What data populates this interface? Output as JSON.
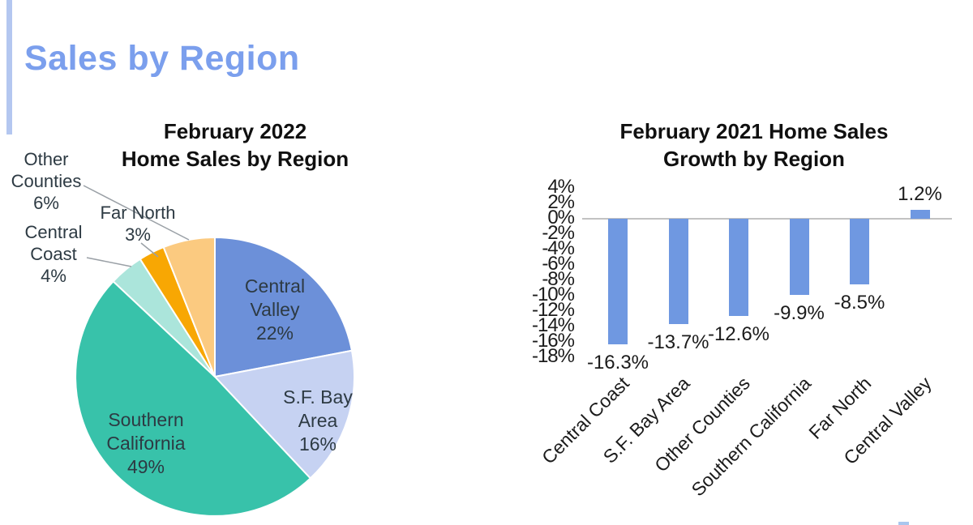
{
  "slide": {
    "title": "Sales by Region",
    "title_color": "#7B9FED",
    "accent_bar_color": "#B4C7F0",
    "background": "#FFFFFF",
    "deco_color": "#A9C6EE"
  },
  "chart_data": [
    {
      "type": "pie",
      "title": "February 2022 Home Sales by Region",
      "title_lines": [
        "February 2022",
        "Home Sales by Region"
      ],
      "start_angle_deg": 0,
      "direction": "clockwise",
      "slices": [
        {
          "label": "Central Valley",
          "value": 22,
          "percent_label": "22%",
          "color": "#6C90D9",
          "display_lines": [
            "Central",
            "Valley",
            "22%"
          ],
          "label_placement": "inside"
        },
        {
          "label": "S.F. Bay Area",
          "value": 16,
          "percent_label": "16%",
          "color": "#C6D2F2",
          "display_lines": [
            "S.F. Bay",
            "Area",
            "16%"
          ],
          "label_placement": "inside"
        },
        {
          "label": "Southern California",
          "value": 49,
          "percent_label": "49%",
          "color": "#38C2AA",
          "display_lines": [
            "Southern",
            "California",
            "49%"
          ],
          "label_placement": "inside"
        },
        {
          "label": "Central Coast",
          "value": 4,
          "percent_label": "4%",
          "color": "#ABE5DB",
          "display_lines": [
            "Central",
            "Coast",
            "4%"
          ],
          "label_placement": "callout"
        },
        {
          "label": "Far North",
          "value": 3,
          "percent_label": "3%",
          "color": "#F8A703",
          "display_lines": [
            "Far North",
            "3%"
          ],
          "label_placement": "callout"
        },
        {
          "label": "Other Counties",
          "value": 6,
          "percent_label": "6%",
          "color": "#FBCA80",
          "display_lines": [
            "Other",
            "Counties",
            "6%"
          ],
          "label_placement": "callout"
        }
      ]
    },
    {
      "type": "bar",
      "title": "February 2021 Home Sales Growth by Region",
      "title_lines": [
        "February 2021 Home Sales",
        "Growth by Region"
      ],
      "categories": [
        "Central Coast",
        "S.F. Bay Area",
        "Other Counties",
        "Southern California",
        "Far North",
        "Central Valley"
      ],
      "values": [
        -16.3,
        -13.7,
        -12.6,
        -9.9,
        -8.5,
        1.2
      ],
      "value_labels": [
        "-16.3%",
        "-13.7%",
        "-12.6%",
        "-9.9%",
        "-8.5%",
        "1.2%"
      ],
      "bar_color": "#6F98E1",
      "yticks": [
        4,
        2,
        0,
        -2,
        -4,
        -6,
        -8,
        -10,
        -12,
        -14,
        -16,
        -18
      ],
      "ytick_labels": [
        "4%",
        "2%",
        "0%",
        "-2%",
        "-4%",
        "-6%",
        "-8%",
        "-10%",
        "-12%",
        "-14%",
        "-16%",
        "-18%"
      ],
      "ylim": [
        -18,
        4
      ],
      "gridlines": "zero-axis-only",
      "axis_line_color": "#C2C2C2",
      "x_label_rotation_deg": -45,
      "legend": "none"
    }
  ]
}
